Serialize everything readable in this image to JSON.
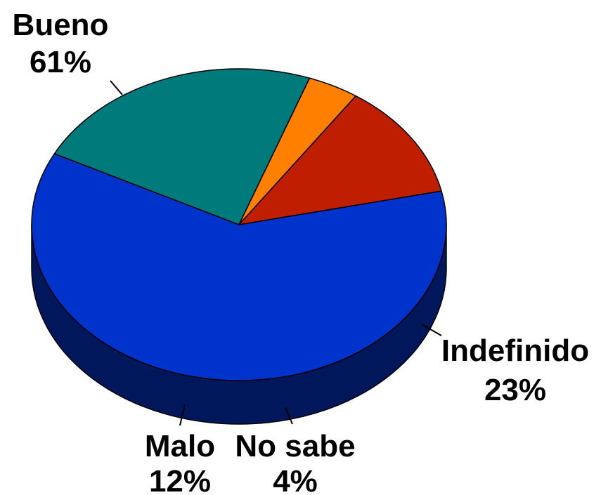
{
  "chart_data": {
    "type": "pie",
    "categories": [
      "Bueno",
      "Indefinido",
      "No sabe",
      "Malo"
    ],
    "values": [
      61,
      23,
      4,
      12
    ],
    "value_labels": [
      "61%",
      "23%",
      "4%",
      "12%"
    ],
    "colors": {
      "Bueno": "#0033cc",
      "Indefinido": "#007a7a",
      "No sabe": "#ff7f00",
      "Malo": "#bf1f00"
    },
    "style": "3d",
    "legend": "none"
  }
}
